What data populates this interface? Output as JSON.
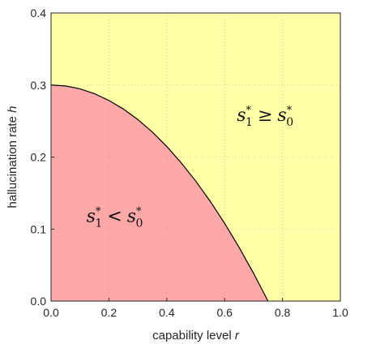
{
  "chart_data": {
    "type": "area",
    "title": "",
    "xlabel": "capability level",
    "xlabel_var": "r",
    "ylabel": "hallucination rate",
    "ylabel_var": "h",
    "xlim": [
      0,
      1
    ],
    "ylim": [
      0,
      0.4
    ],
    "xticks": [
      "0.0",
      "0.2",
      "0.4",
      "0.6",
      "0.8",
      "1.0"
    ],
    "yticks": [
      "0.0",
      "0.1",
      "0.2",
      "0.3",
      "0.4"
    ],
    "grid": true,
    "boundary": {
      "x": [
        0.0,
        0.05,
        0.1,
        0.15,
        0.2,
        0.25,
        0.3,
        0.35,
        0.4,
        0.45,
        0.5,
        0.55,
        0.6,
        0.65,
        0.7,
        0.75
      ],
      "y": [
        0.3,
        0.2987,
        0.2947,
        0.288,
        0.2786,
        0.2667,
        0.252,
        0.2347,
        0.2147,
        0.192,
        0.1667,
        0.1387,
        0.108,
        0.0747,
        0.0387,
        0.0
      ]
    },
    "regions": [
      {
        "label_base": "s",
        "label_sub": "1",
        "label_sup": "*",
        "label_op": "<",
        "label_rhs_base": "s",
        "label_rhs_sub": "0",
        "label_rhs_sup": "*",
        "color": "#FFA8A8",
        "anchor_x": 0.22,
        "anchor_y": 0.11
      },
      {
        "label_base": "s",
        "label_sub": "1",
        "label_sup": "*",
        "label_op": "≥",
        "label_rhs_base": "s",
        "label_rhs_sub": "0",
        "label_rhs_sup": "*",
        "color": "#FFFFA8",
        "anchor_x": 0.74,
        "anchor_y": 0.25
      }
    ]
  }
}
